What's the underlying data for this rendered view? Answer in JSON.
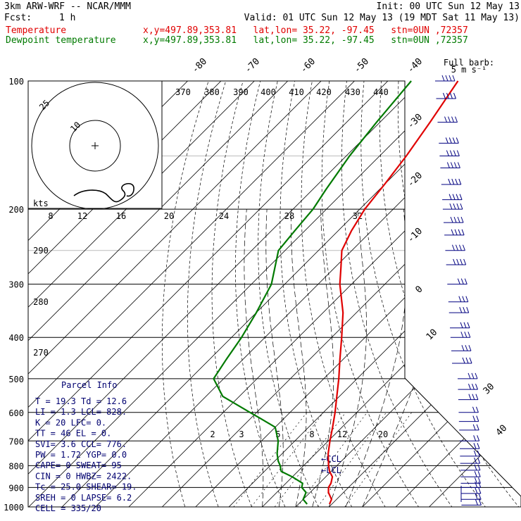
{
  "header": {
    "model": "3km ARW-WRF -- NCAR/MMM",
    "init": "Init: 00 UTC Sun 12 May 13",
    "fcst_label": "Fcst:",
    "fcst_value": "1 h",
    "valid": "Valid: 01 UTC Sun 12 May 13 (19 MDT Sat 11 May 13)",
    "temp_name": "Temperature",
    "temp_info": "x,y=497.89,353.81   lat,lon= 35.22, -97.45   stn=0UN ,72357",
    "dew_name": "Dewpoint temperature",
    "dew_info": "x,y=497.89,353.81   lat,lon= 35.22, -97.45   stn=0UN ,72357"
  },
  "barb_label": [
    "Full barb:",
    "5 m s⁻¹"
  ],
  "hodograph": {
    "units": "kts",
    "ring_labels": [
      "25",
      "10"
    ]
  },
  "parcel_info": {
    "title": "Parcel Info",
    "rows": [
      [
        "T  =    19.3 Td =   12.6"
      ],
      [
        "LI =     1.3 LCL=   828."
      ],
      [
        "K  =      20 LFC=     0."
      ],
      [
        "TT =      46 EL =     0."
      ],
      [
        "SVI=     3.6 CCL=   776."
      ],
      [
        "PW =    1.72 YGP=    0.0"
      ],
      [
        "CAPE=      0 SWEAT=   95"
      ],
      [
        "CIN =      0 HWBZ= 2422."
      ],
      [
        "Tc =    25.0 SHEAR=  19."
      ],
      [
        "SREH =     0 LAPSE=  6.2"
      ],
      [
        "CELL = 335/20"
      ]
    ]
  },
  "level_markers": [
    "CCL",
    "LCL"
  ],
  "colors": {
    "temperature": "#e00000",
    "dewpoint": "#007a00",
    "barbs": "#000080"
  },
  "chart_data": {
    "type": "line",
    "title": "",
    "ylabel": "",
    "y_axis": "pressure (hPa, log scale)",
    "pressure_ticks": [
      100,
      200,
      300,
      400,
      500,
      600,
      700,
      800,
      900,
      1000
    ],
    "isotherm_labels": [
      -80,
      -70,
      -60,
      -50,
      -40,
      -30,
      -20,
      -10,
      0,
      10,
      30,
      40
    ],
    "theta_labels_top": [
      370,
      380,
      390,
      400,
      410,
      420,
      430,
      440
    ],
    "theta_labels_left": [
      290,
      280,
      270
    ],
    "hodo_speed_labels": [
      8,
      12,
      16,
      20,
      24,
      28,
      32
    ],
    "mixing_ratio_labels": [
      2,
      3,
      5,
      8,
      12,
      20
    ],
    "series": [
      {
        "name": "Temperature",
        "color": "#e00000",
        "p": [
          985,
          960,
          925,
          900,
          880,
          850,
          825,
          800,
          750,
          700,
          650,
          600,
          550,
          500,
          450,
          400,
          350,
          300,
          275,
          250,
          225,
          200,
          175,
          150,
          125,
          100
        ],
        "t": [
          19.3,
          18.5,
          15.5,
          14,
          13.5,
          12,
          9.5,
          7.5,
          3.8,
          0.5,
          -2.8,
          -6.5,
          -10.8,
          -15.5,
          -21,
          -27,
          -34,
          -43.5,
          -48,
          -53,
          -56,
          -58.5,
          -60,
          -62,
          -65,
          -69
        ]
      },
      {
        "name": "Dewpoint temperature",
        "color": "#007a00",
        "p": [
          985,
          960,
          925,
          900,
          880,
          850,
          825,
          800,
          780,
          750,
          700,
          650,
          620,
          600,
          550,
          500,
          450,
          400,
          350,
          300,
          250,
          225,
          200,
          180,
          150,
          125,
          100
        ],
        "t": [
          12.6,
          10,
          8.8,
          6,
          5,
          0,
          -5,
          -7,
          -9,
          -11.5,
          -15,
          -20,
          -27,
          -32,
          -45,
          -53,
          -55,
          -57,
          -60,
          -64,
          -72,
          -73,
          -74,
          -76,
          -79,
          -81,
          -83
        ]
      }
    ],
    "wind_profile_direction_deg": 335,
    "grid": true,
    "legend": "top-left"
  }
}
